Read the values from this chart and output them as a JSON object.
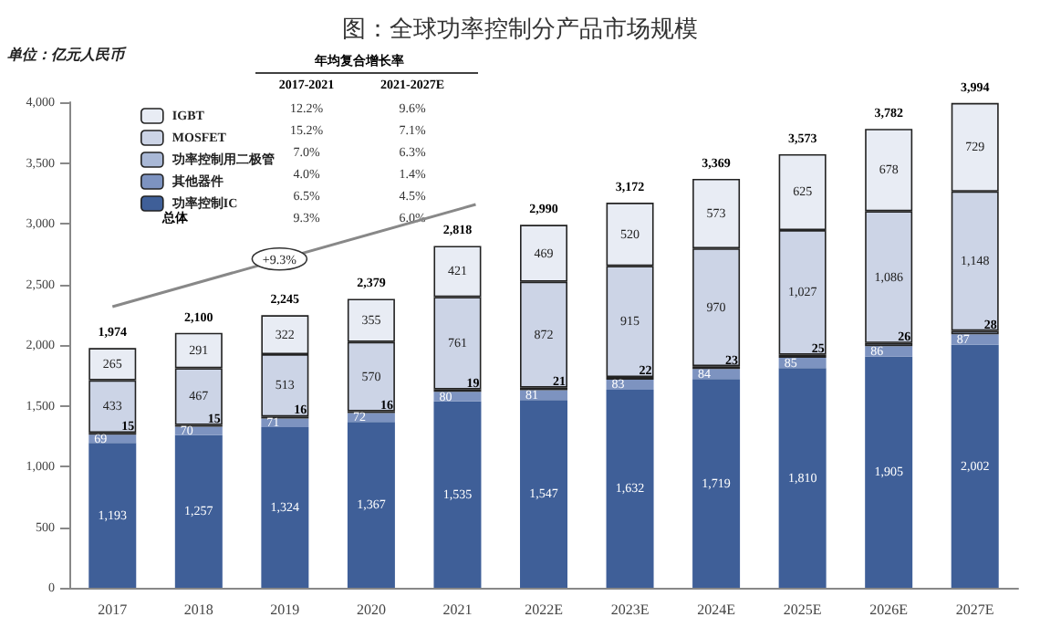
{
  "chart_data": {
    "type": "bar",
    "stacked": true,
    "title": "图：全球功率控制分产品市场规模",
    "ylabel": "单位：亿元人民币",
    "categories": [
      "2017",
      "2018",
      "2019",
      "2020",
      "2021",
      "2022E",
      "2023E",
      "2024E",
      "2025E",
      "2026E",
      "2027E"
    ],
    "series": [
      {
        "name": "功率控制IC",
        "color": "#3f5f98",
        "values": [
          1193,
          1257,
          1324,
          1367,
          1535,
          1547,
          1632,
          1719,
          1810,
          1905,
          2002
        ],
        "value_labels": [
          "1,193",
          "1,257",
          "1,324",
          "1,367",
          "1,535",
          "1,547",
          "1,632",
          "1,719",
          "1,810",
          "1,905",
          "2,002"
        ]
      },
      {
        "name": "其他器件",
        "color": "#7d93c0",
        "values": [
          69,
          70,
          71,
          72,
          80,
          81,
          83,
          84,
          85,
          86,
          87
        ]
      },
      {
        "name": "功率控制用二极管",
        "color": "#a9b8d6",
        "values": [
          15,
          15,
          16,
          16,
          19,
          21,
          22,
          23,
          25,
          26,
          28
        ]
      },
      {
        "name": "MOSFET",
        "color": "#ccd4e6",
        "values": [
          433,
          467,
          513,
          570,
          761,
          872,
          915,
          970,
          1027,
          1086,
          1148
        ],
        "value_labels": [
          "433",
          "467",
          "513",
          "570",
          "761",
          "872",
          "915",
          "970",
          "1,027",
          "1,086",
          "1,148"
        ]
      },
      {
        "name": "IGBT",
        "color": "#e8ecf4",
        "values": [
          265,
          291,
          322,
          355,
          421,
          469,
          520,
          573,
          625,
          678,
          729
        ]
      }
    ],
    "totals": [
      "1,974",
      "2,100",
      "2,245",
      "2,379",
      "2,818",
      "2,990",
      "3,172",
      "3,369",
      "3,573",
      "3,782",
      "3,994"
    ],
    "data_labels": true,
    "ylim": [
      0,
      4000
    ],
    "yticks": [
      0,
      500,
      {
        "value": 1000,
        "label": "1,000"
      },
      {
        "value": 1500,
        "label": "1,500"
      },
      {
        "value": 2000,
        "label": "2,000"
      },
      {
        "value": 2500,
        "label": "2,500"
      },
      {
        "value": 3000,
        "label": "3,000"
      },
      {
        "value": 3500,
        "label": "3,500"
      },
      {
        "value": 4000,
        "label": "4,000"
      }
    ],
    "grid": false,
    "legend": "top left",
    "annotations": [
      "年均复合增长率",
      "2017-2021",
      "2021-2027E",
      "12.2%",
      "9.6%",
      "15.2%",
      "7.1%",
      "7.0%",
      "6.3%",
      "4.0%",
      "1.4%",
      "6.5%",
      "4.5%",
      "总体",
      "9.3%",
      "6.0%",
      "+9.3%"
    ]
  }
}
